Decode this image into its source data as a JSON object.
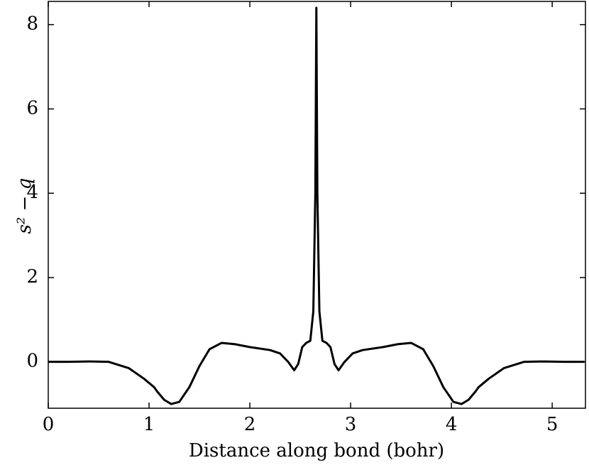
{
  "chart_data": {
    "type": "line",
    "x_label": "Distance along bond (bohr)",
    "y_label": "s² − q",
    "x": [
      0,
      0.2,
      0.4,
      0.6,
      0.8,
      0.95,
      1.05,
      1.08,
      1.15,
      1.22,
      1.3,
      1.4,
      1.5,
      1.6,
      1.72,
      1.85,
      2.0,
      2.2,
      2.3,
      2.38,
      2.44,
      2.48,
      2.52,
      2.56,
      2.6,
      2.63,
      2.65,
      2.66,
      2.67,
      2.69,
      2.72,
      2.76,
      2.8,
      2.84,
      2.88,
      2.94,
      3.02,
      3.12,
      3.32,
      3.47,
      3.6,
      3.72,
      3.82,
      3.92,
      4.02,
      4.1,
      4.17,
      4.24,
      4.27,
      4.37,
      4.52,
      4.72,
      4.92,
      5.12,
      5.32
    ],
    "series": [
      {
        "color": "#000000",
        "values": [
          0,
          0,
          0.01,
          0,
          -0.15,
          -0.4,
          -0.6,
          -0.7,
          -0.9,
          -1.0,
          -0.95,
          -0.6,
          -0.1,
          0.3,
          0.45,
          0.42,
          0.35,
          0.28,
          0.2,
          0.0,
          -0.2,
          -0.05,
          0.35,
          0.45,
          0.5,
          1.2,
          4.0,
          8.4,
          4.0,
          1.2,
          0.5,
          0.45,
          0.35,
          -0.05,
          -0.2,
          0.0,
          0.2,
          0.28,
          0.35,
          0.42,
          0.45,
          0.3,
          -0.1,
          -0.6,
          -0.95,
          -1.0,
          -0.9,
          -0.7,
          -0.6,
          -0.4,
          -0.15,
          0,
          0.01,
          0,
          0
        ]
      }
    ],
    "xlim": [
      0,
      5.33
    ],
    "ylim": [
      -1.1,
      8.55
    ],
    "xticks": [
      0,
      1,
      2,
      3,
      4,
      5
    ],
    "yticks": [
      0,
      2,
      4,
      6,
      8
    ]
  }
}
